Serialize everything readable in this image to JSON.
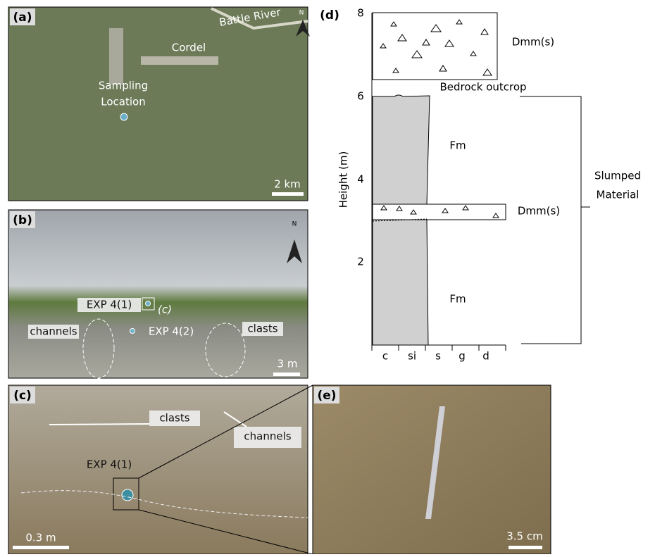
{
  "panel_a": {
    "label": "(a)",
    "river": "Battle River",
    "town": "Cordel",
    "site_line1": "Sampling",
    "site_line2": "Location",
    "north": "N",
    "scale": "2 km"
  },
  "panel_b": {
    "label": "(b)",
    "north": "N",
    "exp1": "EXP 4(1)",
    "inset": "(c)",
    "exp2": "EXP 4(2)",
    "channels": "channels",
    "clasts": "clasts",
    "scale": "3 m"
  },
  "panel_c": {
    "label": "(c)",
    "clasts": "clasts",
    "channels": "channels",
    "exp1": "EXP 4(1)",
    "scale": "0.3 m"
  },
  "panel_d": {
    "label": "(d)",
    "y_axis_label": "Height (m)",
    "yticks": [
      "2",
      "4",
      "6",
      "8"
    ],
    "top_unit": "Dmm(s)",
    "bedrock": "Bedrock outcrop",
    "upper_fm": "Fm",
    "middle_unit": "Dmm(s)",
    "lower_fm": "Fm",
    "slumped_line1": "Slumped",
    "slumped_line2": "Material",
    "grain_sizes": [
      "c",
      "si",
      "s",
      "g",
      "d"
    ]
  },
  "panel_e": {
    "label": "(e)",
    "scale": "3.5 cm"
  }
}
